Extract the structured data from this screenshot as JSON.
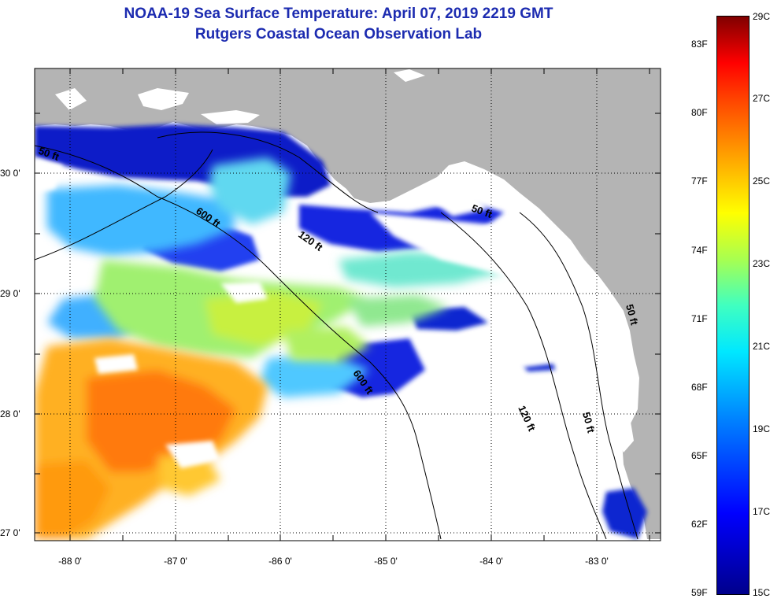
{
  "title": {
    "line1": "NOAA-19 Sea Surface Temperature:  April 07, 2019 2219 GMT",
    "line2": "Rutgers Coastal Ocean Observation Lab"
  },
  "axes": {
    "x_ticks": [
      "-88 0'",
      "-87 0'",
      "-86 0'",
      "-85 0'",
      "-84 0'",
      "-83 0'"
    ],
    "y_ticks": [
      "30 0'",
      "29 0'",
      "28 0'",
      "27 0'"
    ]
  },
  "contours": [
    {
      "label": "50 ft",
      "depth_ft": 50
    },
    {
      "label": "600 ft",
      "depth_ft": 600
    },
    {
      "label": "120 ft",
      "depth_ft": 120
    },
    {
      "label": "50 ft",
      "depth_ft": 50
    },
    {
      "label": "600 ft",
      "depth_ft": 600
    },
    {
      "label": "120 ft",
      "depth_ft": 120
    },
    {
      "label": "50 ft",
      "depth_ft": 50
    },
    {
      "label": "50 ft",
      "depth_ft": 50
    }
  ],
  "colorbar": {
    "fahrenheit": [
      "83F",
      "80F",
      "77F",
      "74F",
      "71F",
      "68F",
      "65F",
      "62F",
      "59F"
    ],
    "celsius": [
      "29C",
      "27C",
      "25C",
      "23C",
      "21C",
      "19C",
      "17C",
      "15C"
    ]
  },
  "colors": {
    "land": "#b4b4b4",
    "ocean": "#ffffff",
    "title": "#1c2bb0"
  }
}
